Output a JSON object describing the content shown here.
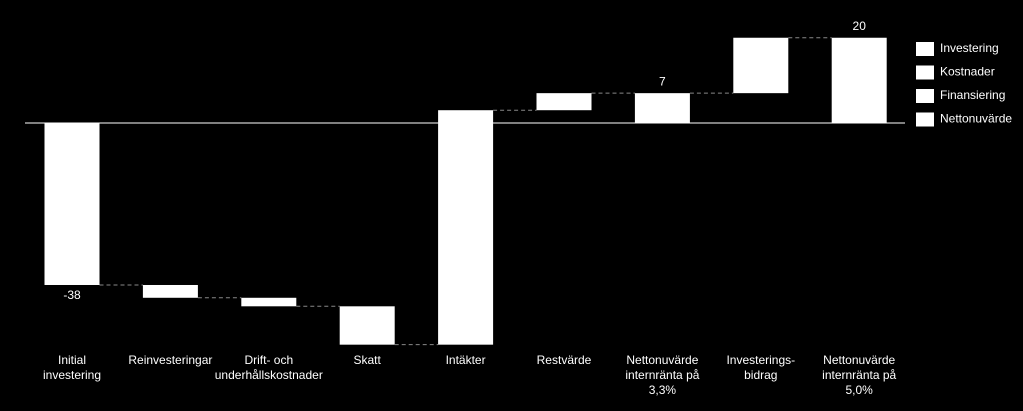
{
  "chart_data": {
    "type": "waterfall",
    "categories": [
      "Initial\ninvestering",
      "Reinvesteringar",
      "Drift- och\nunderhållskostnader",
      "Skatt",
      "Intäkter",
      "Restvärde",
      "Nettonuvärde\ninternränta på\n3,3%",
      "Investerings-\nbidrag",
      "Nettonuvärde\ninternränta på\n5,0%"
    ],
    "values": [
      -38,
      -3,
      -2,
      -9,
      55,
      4,
      7,
      13,
      20
    ],
    "measure": [
      "relative",
      "relative",
      "relative",
      "relative",
      "relative",
      "relative",
      "total",
      "relative",
      "total"
    ],
    "value_labels": [
      "-38",
      null,
      null,
      null,
      null,
      null,
      "7",
      null,
      "20"
    ],
    "color": "#ffffff",
    "ylim": [
      -55,
      23
    ],
    "legend": [
      {
        "name": "Investering",
        "color": "#ffffff"
      },
      {
        "name": "Kostnader",
        "color": "#ffffff"
      },
      {
        "name": "Finansiering",
        "color": "#ffffff"
      },
      {
        "name": "Nettonuvärde",
        "color": "#ffffff"
      }
    ]
  }
}
